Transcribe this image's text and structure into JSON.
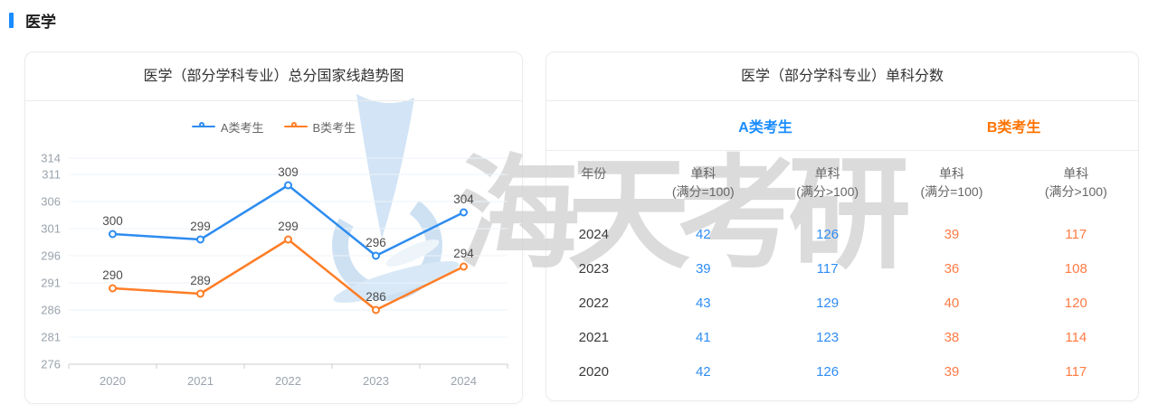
{
  "page": {
    "section_title": "医学"
  },
  "trend_panel": {
    "title": "医学（部分学科专业）总分国家线趋势图"
  },
  "chart_data": {
    "type": "line",
    "title": "医学（部分学科专业）总分国家线趋势图",
    "x": [
      "2020",
      "2021",
      "2022",
      "2023",
      "2024"
    ],
    "series": [
      {
        "name": "A类考生",
        "color": "#2d8cf0",
        "values": [
          300,
          299,
          309,
          296,
          304
        ]
      },
      {
        "name": "B类考生",
        "color": "#ff7d26",
        "values": [
          290,
          289,
          299,
          286,
          294
        ]
      }
    ],
    "y_ticks": [
      276,
      281,
      286,
      291,
      296,
      301,
      306,
      311,
      314
    ],
    "ylim": [
      276,
      314
    ],
    "xlabel": "",
    "ylabel": "",
    "grid": true,
    "legend_position": "top",
    "point_labels": true
  },
  "score_panel": {
    "title": "医学（部分学科专业）单科分数",
    "group_a": "A类考生",
    "group_b": "B类考生",
    "a_header_color": "#1a8cff",
    "b_header_color": "#ff7300",
    "a_value_color": "#2f8df5",
    "b_value_color": "#ff7b45",
    "columns": [
      "年份",
      "单科\n(满分=100)",
      "单科\n(满分>100)",
      "单科\n(满分=100)",
      "单科\n(满分>100)"
    ],
    "rows": [
      {
        "year": "2024",
        "a1": "42",
        "a2": "126",
        "b1": "39",
        "b2": "117"
      },
      {
        "year": "2023",
        "a1": "39",
        "a2": "117",
        "b1": "36",
        "b2": "108"
      },
      {
        "year": "2022",
        "a1": "43",
        "a2": "129",
        "b1": "40",
        "b2": "120"
      },
      {
        "year": "2021",
        "a1": "41",
        "a2": "123",
        "b1": "38",
        "b2": "114"
      },
      {
        "year": "2020",
        "a1": "42",
        "a2": "126",
        "b1": "39",
        "b2": "117"
      }
    ]
  },
  "watermark": {
    "text": "海天考研"
  },
  "colors": {
    "accent_blue": "#1a8cff",
    "grid_line": "#eef3fa",
    "axis_line": "#cccccc",
    "axis_text": "#9aa3ad",
    "point_label": "#4d4d4d"
  }
}
